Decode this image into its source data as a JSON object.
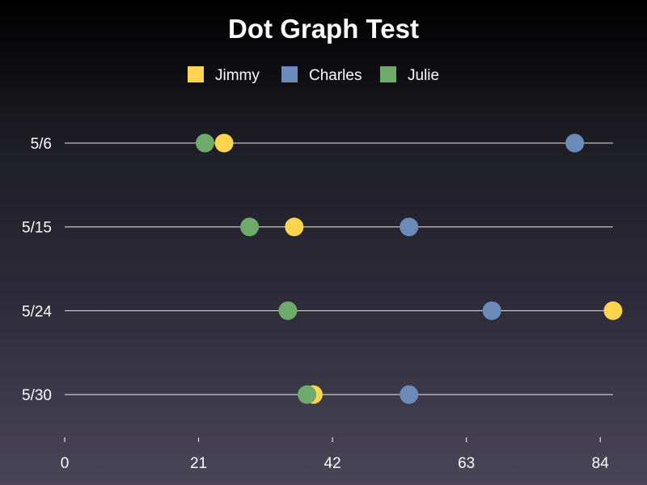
{
  "chart_data": {
    "type": "scatter",
    "title": "Dot Graph Test",
    "legend_position": "top",
    "grid": false,
    "categories": [
      "5/6",
      "5/15",
      "5/24",
      "5/30"
    ],
    "xlim": [
      0,
      86
    ],
    "x_ticks": [
      0,
      21,
      42,
      63,
      84
    ],
    "series": [
      {
        "name": "Jimmy",
        "color": "#ffd54f",
        "values": [
          25,
          36,
          86,
          39
        ]
      },
      {
        "name": "Charles",
        "color": "#6b8cba",
        "values": [
          80,
          54,
          67,
          54
        ]
      },
      {
        "name": "Julie",
        "color": "#6eaa6b",
        "values": [
          22,
          29,
          35,
          38
        ]
      }
    ]
  }
}
